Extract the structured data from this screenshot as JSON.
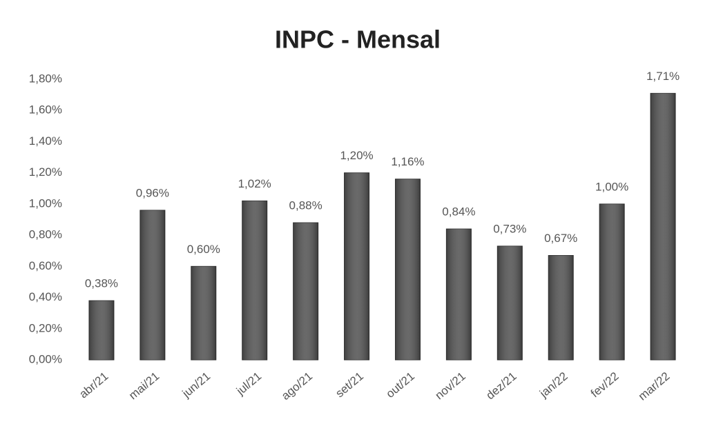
{
  "chart_data": {
    "type": "bar",
    "title": "INPC - Mensal",
    "categories": [
      "abr/21",
      "mai/21",
      "jun/21",
      "jul/21",
      "ago/21",
      "set/21",
      "out/21",
      "nov/21",
      "dez/21",
      "jan/22",
      "fev/22",
      "mar/22"
    ],
    "values": [
      0.38,
      0.96,
      0.6,
      1.02,
      0.88,
      1.2,
      1.16,
      0.84,
      0.73,
      0.67,
      1.0,
      1.71
    ],
    "value_labels": [
      "0,38%",
      "0,96%",
      "0,60%",
      "1,02%",
      "0,88%",
      "1,20%",
      "1,16%",
      "0,84%",
      "0,73%",
      "0,67%",
      "1,00%",
      "1,71%"
    ],
    "color": "#555555",
    "ylim": [
      0,
      1.8
    ],
    "yticks": [
      {
        "value": 0,
        "label": "0,00%"
      },
      {
        "value": 0.2,
        "label": "0,20%"
      },
      {
        "value": 0.4,
        "label": "0,40%"
      },
      {
        "value": 0.6,
        "label": "0,60%"
      },
      {
        "value": 0.8,
        "label": "0,80%"
      },
      {
        "value": 1.0,
        "label": "1,00%"
      },
      {
        "value": 1.2,
        "label": "1,20%"
      },
      {
        "value": 1.4,
        "label": "1,40%"
      },
      {
        "value": 1.6,
        "label": "1,60%"
      },
      {
        "value": 1.8,
        "label": "1,80%"
      }
    ],
    "grid": false
  }
}
